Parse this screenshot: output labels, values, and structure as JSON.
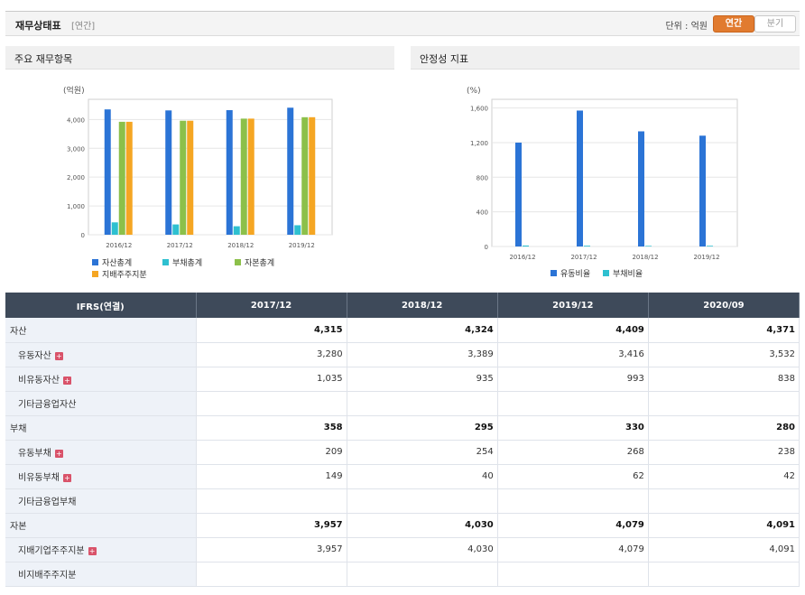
{
  "header": {
    "title": "재무상태표",
    "sub": "[연간]",
    "unit": "단위 : 억원",
    "btn_annual": "연간",
    "btn_quarter": "분기"
  },
  "colors": {
    "asset": "#2b74d6",
    "liab": "#2ec0d0",
    "equity": "#8cc04a",
    "parent": "#f5a623"
  },
  "chart1": {
    "panel_title": "주요 재무항목",
    "chart_data": {
      "type": "bar",
      "ylabel": "(억원)",
      "ylim": [
        0,
        4700
      ],
      "yticks": [
        "0",
        "1,000",
        "2,000",
        "3,000",
        "4,000"
      ],
      "categories": [
        "2016/12",
        "2017/12",
        "2018/12",
        "2019/12"
      ],
      "series": [
        {
          "name": "자산총계",
          "values": [
            4350,
            4315,
            4324,
            4409
          ]
        },
        {
          "name": "부채총계",
          "values": [
            430,
            358,
            295,
            330
          ]
        },
        {
          "name": "자본총계",
          "values": [
            3920,
            3957,
            4030,
            4079
          ]
        },
        {
          "name": "지배주주지분",
          "values": [
            3920,
            3957,
            4030,
            4079
          ]
        }
      ]
    }
  },
  "chart2": {
    "panel_title": "안정성 지표",
    "chart_data": {
      "type": "bar",
      "ylabel": "(%)",
      "ylim": [
        0,
        1700
      ],
      "yticks": [
        "0",
        "400",
        "800",
        "1,200",
        "1,600"
      ],
      "categories": [
        "2016/12",
        "2017/12",
        "2018/12",
        "2019/12"
      ],
      "series": [
        {
          "name": "유동비율",
          "values": [
            1200,
            1570,
            1330,
            1280
          ]
        },
        {
          "name": "부채비율",
          "values": [
            11,
            9,
            7,
            8
          ]
        }
      ]
    }
  },
  "table": {
    "header": [
      "IFRS(연결)",
      "2017/12",
      "2018/12",
      "2019/12",
      "2020/09"
    ],
    "rows": [
      {
        "label": "자산",
        "major": true,
        "plus": false,
        "vals": [
          "4,315",
          "4,324",
          "4,409",
          "4,371"
        ]
      },
      {
        "label": "유동자산",
        "major": false,
        "plus": true,
        "vals": [
          "3,280",
          "3,389",
          "3,416",
          "3,532"
        ]
      },
      {
        "label": "비유동자산",
        "major": false,
        "plus": true,
        "vals": [
          "1,035",
          "935",
          "993",
          "838"
        ]
      },
      {
        "label": "기타금융업자산",
        "major": false,
        "plus": false,
        "vals": [
          "",
          "",
          "",
          ""
        ]
      },
      {
        "label": "부채",
        "major": true,
        "plus": false,
        "vals": [
          "358",
          "295",
          "330",
          "280"
        ]
      },
      {
        "label": "유동부채",
        "major": false,
        "plus": true,
        "vals": [
          "209",
          "254",
          "268",
          "238"
        ]
      },
      {
        "label": "비유동부채",
        "major": false,
        "plus": true,
        "vals": [
          "149",
          "40",
          "62",
          "42"
        ]
      },
      {
        "label": "기타금융업부채",
        "major": false,
        "plus": false,
        "vals": [
          "",
          "",
          "",
          ""
        ]
      },
      {
        "label": "자본",
        "major": true,
        "plus": false,
        "vals": [
          "3,957",
          "4,030",
          "4,079",
          "4,091"
        ]
      },
      {
        "label": "지배기업주주지분",
        "major": false,
        "plus": true,
        "vals": [
          "3,957",
          "4,030",
          "4,079",
          "4,091"
        ]
      },
      {
        "label": "비지배주주지분",
        "major": false,
        "plus": false,
        "vals": [
          "",
          "",
          "",
          ""
        ]
      }
    ]
  }
}
